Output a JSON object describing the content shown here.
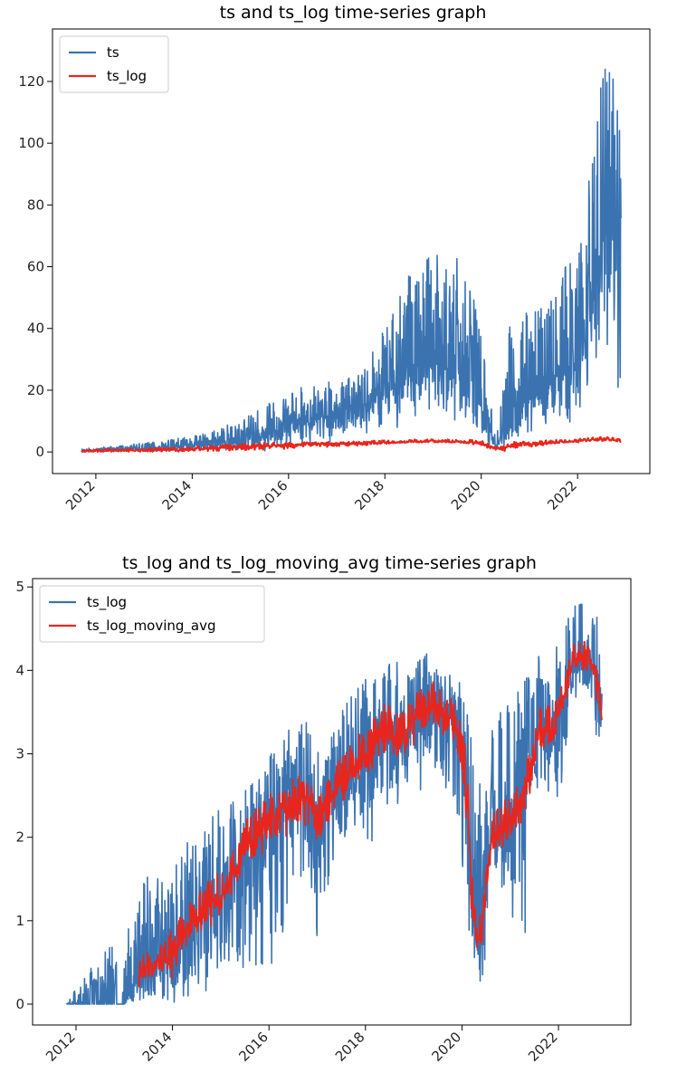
{
  "chart_data": [
    {
      "type": "line",
      "title": "ts and ts_log time-series graph",
      "xlabel": "",
      "ylabel": "",
      "x_ticks": [
        "2012",
        "2014",
        "2016",
        "2018",
        "2020",
        "2022"
      ],
      "y_ticks": [
        "0",
        "20",
        "40",
        "60",
        "80",
        "100",
        "120"
      ],
      "ylim": [
        -7,
        137
      ],
      "xlim": [
        2011.1,
        2023.5
      ],
      "grid": false,
      "legend_position": "top-left",
      "series": [
        {
          "name": "ts",
          "color": "#3b73b1",
          "x": [
            2011.7,
            2012.0,
            2012.5,
            2013.0,
            2013.5,
            2014.0,
            2014.5,
            2015.0,
            2015.5,
            2016.0,
            2016.5,
            2017.0,
            2017.5,
            2018.0,
            2018.5,
            2019.0,
            2019.5,
            2020.0,
            2020.3,
            2020.6,
            2021.0,
            2021.5,
            2022.0,
            2022.3,
            2022.6,
            2022.9
          ],
          "low": [
            0,
            0,
            0,
            0,
            0,
            0,
            0,
            0,
            0,
            1,
            2,
            3,
            3,
            5,
            10,
            10,
            8,
            3,
            0,
            0,
            2,
            4,
            10,
            20,
            28,
            15
          ],
          "mid": [
            0.5,
            0.6,
            1,
            1,
            1.5,
            2,
            3,
            4,
            6,
            9,
            11,
            13,
            15,
            20,
            28,
            30,
            26,
            15,
            2,
            10,
            17,
            24,
            32,
            48,
            75,
            50
          ],
          "high": [
            1,
            1.5,
            2,
            3,
            4,
            5,
            8,
            10,
            15,
            20,
            22,
            23,
            25,
            40,
            60,
            64,
            70,
            40,
            5,
            45,
            45,
            55,
            65,
            100,
            133,
            110
          ]
        },
        {
          "name": "ts_log",
          "color": "#e8261d",
          "x": [
            2011.7,
            2012.0,
            2012.5,
            2013.0,
            2013.5,
            2014.0,
            2014.5,
            2015.0,
            2015.5,
            2016.0,
            2016.5,
            2017.0,
            2017.5,
            2018.0,
            2018.5,
            2019.0,
            2019.5,
            2020.0,
            2020.3,
            2020.6,
            2021.0,
            2021.5,
            2022.0,
            2022.3,
            2022.6,
            2022.9
          ],
          "low": [
            0,
            0,
            0,
            0,
            0,
            0,
            0,
            0,
            0.5,
            1,
            1.5,
            1.5,
            2,
            2.5,
            3,
            3,
            3,
            2,
            0,
            0.5,
            1.5,
            2.5,
            3,
            3.5,
            3.5,
            3
          ],
          "mid": [
            0.3,
            0.4,
            0.5,
            0.6,
            0.8,
            1,
            1.3,
            1.6,
            2,
            2.3,
            2.5,
            2.6,
            2.8,
            3,
            3.3,
            3.5,
            3.4,
            3,
            1,
            2,
            2.5,
            3.1,
            3.5,
            4,
            4.2,
            3.5
          ],
          "high": [
            0.7,
            0.8,
            1,
            1.2,
            1.5,
            1.8,
            2.2,
            2.5,
            3,
            3.1,
            3.2,
            3.3,
            3.5,
            3.8,
            4,
            4.1,
            4.2,
            3.8,
            1.5,
            3.2,
            3.5,
            4,
            4.2,
            4.7,
            4.9,
            4.3
          ]
        }
      ]
    },
    {
      "type": "line",
      "title": "ts_log and ts_log_moving_avg time-series graph",
      "xlabel": "",
      "ylabel": "",
      "x_ticks": [
        "2012",
        "2014",
        "2016",
        "2018",
        "2020",
        "2022"
      ],
      "y_ticks": [
        "0",
        "1",
        "2",
        "3",
        "4",
        "5"
      ],
      "ylim": [
        -0.25,
        5.1
      ],
      "xlim": [
        2011.1,
        2023.5
      ],
      "grid": false,
      "legend_position": "top-left",
      "series": [
        {
          "name": "ts_log",
          "color": "#3b73b1",
          "x": [
            2011.8,
            2012.5,
            2012.8,
            2013.0,
            2013.3,
            2013.6,
            2014.0,
            2014.3,
            2014.6,
            2015.0,
            2015.3,
            2015.6,
            2016.0,
            2016.4,
            2016.8,
            2017.0,
            2017.4,
            2017.8,
            2018.0,
            2018.4,
            2018.8,
            2019.0,
            2019.3,
            2019.6,
            2019.9,
            2020.1,
            2020.2,
            2020.3,
            2020.4,
            2020.6,
            2020.8,
            2021.0,
            2021.3,
            2021.6,
            2021.9,
            2022.1,
            2022.3,
            2022.5,
            2022.7,
            2022.9
          ],
          "low": [
            0,
            0,
            0,
            0,
            0,
            0,
            0,
            0,
            0,
            0,
            0,
            0.5,
            0,
            1,
            1.5,
            0,
            1.8,
            2,
            1.5,
            2.2,
            2.3,
            2.5,
            2.5,
            2.5,
            2,
            1,
            0,
            0,
            0,
            1.2,
            1,
            0.7,
            0.7,
            2.2,
            2.3,
            2.5,
            3.5,
            3.5,
            3.5,
            2.7
          ],
          "mid": [
            0,
            0,
            0,
            0,
            0.3,
            0.4,
            0.5,
            0.9,
            1.1,
            1.3,
            1.6,
            2,
            2.2,
            2.4,
            2.5,
            2.2,
            2.6,
            2.9,
            3,
            3.3,
            3.2,
            3.4,
            3.6,
            3.5,
            3.3,
            2.5,
            1.5,
            0.7,
            0.8,
            2,
            2.2,
            2.3,
            2.6,
            3.3,
            3.3,
            3.7,
            4,
            4.1,
            4.1,
            3.5
          ],
          "high": [
            0,
            0.7,
            0.7,
            0.7,
            1.5,
            1.6,
            1.7,
            2,
            2.1,
            2.4,
            2.6,
            2.7,
            3,
            3.3,
            3.5,
            3.2,
            3.4,
            3.8,
            4,
            4.1,
            4.2,
            4.2,
            4.2,
            4.1,
            4,
            3.5,
            3.2,
            2.5,
            2.8,
            3.4,
            3.5,
            3.7,
            4,
            4.2,
            4.3,
            4.5,
            4.8,
            4.9,
            4.8,
            4.7
          ]
        },
        {
          "name": "ts_log_moving_avg",
          "color": "#e8261d",
          "x": [
            2013.3,
            2013.6,
            2014.0,
            2014.3,
            2014.6,
            2015.0,
            2015.3,
            2015.6,
            2016.0,
            2016.4,
            2016.8,
            2017.0,
            2017.4,
            2017.8,
            2018.0,
            2018.4,
            2018.8,
            2019.0,
            2019.3,
            2019.6,
            2019.9,
            2020.1,
            2020.2,
            2020.3,
            2020.4,
            2020.6,
            2020.8,
            2021.0,
            2021.3,
            2021.6,
            2021.9,
            2022.1,
            2022.3,
            2022.5,
            2022.7,
            2022.9
          ],
          "low": [
            0.2,
            0.3,
            0.3,
            0.7,
            0.8,
            1,
            1.3,
            1.7,
            1.8,
            2,
            2.1,
            1.8,
            2.3,
            2.6,
            2.7,
            3,
            2.9,
            3.1,
            3.3,
            3.2,
            3,
            2,
            1,
            0.6,
            0.6,
            1.8,
            1.8,
            1.9,
            2.2,
            3,
            3.1,
            3.5,
            3.9,
            4,
            3.9,
            3.2
          ],
          "mid": [
            0.4,
            0.5,
            0.6,
            0.9,
            1.1,
            1.3,
            1.6,
            2,
            2.2,
            2.4,
            2.5,
            2.2,
            2.6,
            2.9,
            3,
            3.3,
            3.2,
            3.4,
            3.6,
            3.5,
            3.3,
            2.5,
            1.5,
            0.8,
            0.8,
            2,
            2.1,
            2.2,
            2.5,
            3.3,
            3.3,
            3.7,
            4.1,
            4.2,
            4.1,
            3.5
          ],
          "high": [
            0.6,
            0.7,
            0.9,
            1.2,
            1.4,
            1.6,
            1.9,
            2.3,
            2.5,
            2.7,
            2.8,
            2.5,
            2.9,
            3.2,
            3.3,
            3.6,
            3.5,
            3.7,
            3.9,
            3.8,
            3.6,
            3.0,
            2.0,
            1.1,
            1.1,
            2.3,
            2.4,
            2.5,
            2.8,
            3.6,
            3.6,
            3.9,
            4.3,
            4.4,
            4.3,
            3.8
          ]
        }
      ]
    }
  ]
}
